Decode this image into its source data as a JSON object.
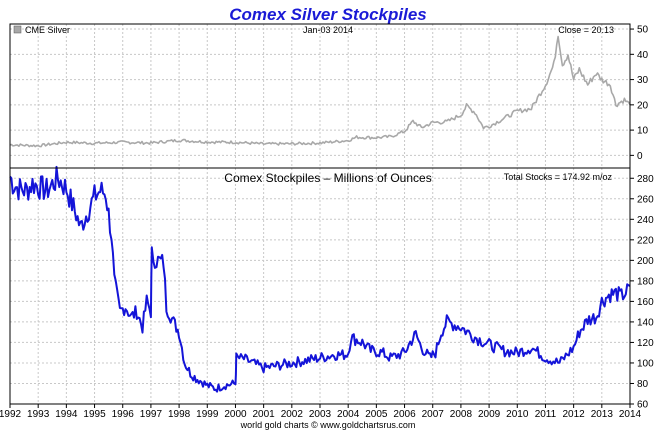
{
  "colors": {
    "title": "#1a1ad6",
    "silver_line": "#a8a8a8",
    "stocks_line": "#1414d8",
    "grid": "#c8c8c8",
    "frame": "#000000"
  },
  "chart_data": [
    {
      "type": "line",
      "title": "Comex Silver Stockpiles",
      "legend": "CME Silver",
      "date_label": "Jan-03 2014",
      "close_label": "Close = 20.13",
      "ylim": [
        -5,
        52
      ],
      "yticks": [
        0,
        10,
        20,
        30,
        40,
        50
      ],
      "x": [
        1992.0,
        1993.0,
        1994.0,
        1995.0,
        1996.0,
        1997.0,
        1998.0,
        1999.0,
        2000.0,
        2001.0,
        2002.0,
        2003.0,
        2004.0,
        2004.3,
        2005.0,
        2005.5,
        2006.0,
        2006.3,
        2006.6,
        2007.0,
        2007.5,
        2008.0,
        2008.2,
        2008.5,
        2008.8,
        2009.0,
        2009.5,
        2010.0,
        2010.5,
        2011.0,
        2011.3,
        2011.45,
        2011.6,
        2011.8,
        2012.0,
        2012.2,
        2012.5,
        2012.8,
        2013.0,
        2013.3,
        2013.5,
        2013.8,
        2014.0
      ],
      "values": [
        4.2,
        3.8,
        5.2,
        4.8,
        5.2,
        4.9,
        6.0,
        5.3,
        5.2,
        4.5,
        4.6,
        4.9,
        5.9,
        7.2,
        7.0,
        7.4,
        9.5,
        13.5,
        11.0,
        13.0,
        13.3,
        16.0,
        19.5,
        17.0,
        11.0,
        11.5,
        14.5,
        17.5,
        18.5,
        28.0,
        36.0,
        48.5,
        36.0,
        40.0,
        30.0,
        34.0,
        28.0,
        32.5,
        30.0,
        28.0,
        20.0,
        22.0,
        20.0
      ]
    },
    {
      "type": "line",
      "title": "Comex Stockpiles – Millions of Ounces",
      "total_label": "Total Stocks = 174.92 m/oz",
      "ylim": [
        60,
        290
      ],
      "yticks": [
        60,
        80,
        100,
        120,
        140,
        160,
        180,
        200,
        220,
        240,
        260,
        280
      ],
      "xlabels": [
        "1992",
        "1993",
        "1994",
        "1995",
        "1996",
        "1997",
        "1998",
        "1999",
        "2000",
        "2001",
        "2002",
        "2003",
        "2004",
        "2005",
        "2006",
        "2007",
        "2008",
        "2009",
        "2010",
        "2011",
        "2012",
        "2013",
        "2014"
      ],
      "x": [
        1992.0,
        1992.1,
        1992.3,
        1992.6,
        1992.8,
        1993.0,
        1993.3,
        1993.7,
        1994.0,
        1994.2,
        1994.35,
        1994.5,
        1994.8,
        1995.0,
        1995.2,
        1995.4,
        1995.6,
        1995.7,
        1995.9,
        1996.1,
        1996.3,
        1996.5,
        1996.7,
        1996.85,
        1997.0,
        1997.03,
        1997.2,
        1997.45,
        1997.55,
        1997.8,
        1998.0,
        1998.2,
        1998.4,
        1998.6,
        1998.8,
        1999.0,
        1999.3,
        1999.6,
        2000.0,
        2000.03,
        2000.3,
        2001.0,
        2002.0,
        2003.0,
        2003.5,
        2003.9,
        2004.0,
        2004.1,
        2004.5,
        2004.8,
        2005.2,
        2005.5,
        2006.0,
        2006.2,
        2006.4,
        2006.6,
        2006.9,
        2007.1,
        2007.3,
        2007.5,
        2008.0,
        2008.5,
        2009.0,
        2009.5,
        2010.0,
        2010.5,
        2011.0,
        2011.5,
        2012.0,
        2012.2,
        2012.5,
        2012.8,
        2013.0,
        2013.3,
        2013.5,
        2013.7,
        2013.9,
        2014.0
      ],
      "values": [
        282,
        275,
        270,
        268,
        275,
        272,
        268,
        280,
        270,
        255,
        245,
        232,
        250,
        262,
        268,
        265,
        225,
        180,
        150,
        155,
        145,
        150,
        135,
        160,
        150,
        205,
        200,
        198,
        155,
        140,
        130,
        100,
        90,
        85,
        82,
        78,
        75,
        78,
        80,
        105,
        104,
        95,
        100,
        105,
        108,
        108,
        110,
        125,
        120,
        112,
        110,
        105,
        110,
        120,
        128,
        115,
        105,
        110,
        130,
        140,
        135,
        125,
        118,
        112,
        110,
        115,
        105,
        100,
        115,
        130,
        142,
        145,
        160,
        167,
        168,
        165,
        170,
        175
      ]
    }
  ],
  "credit": "world gold charts © www.goldchartsrus.com"
}
